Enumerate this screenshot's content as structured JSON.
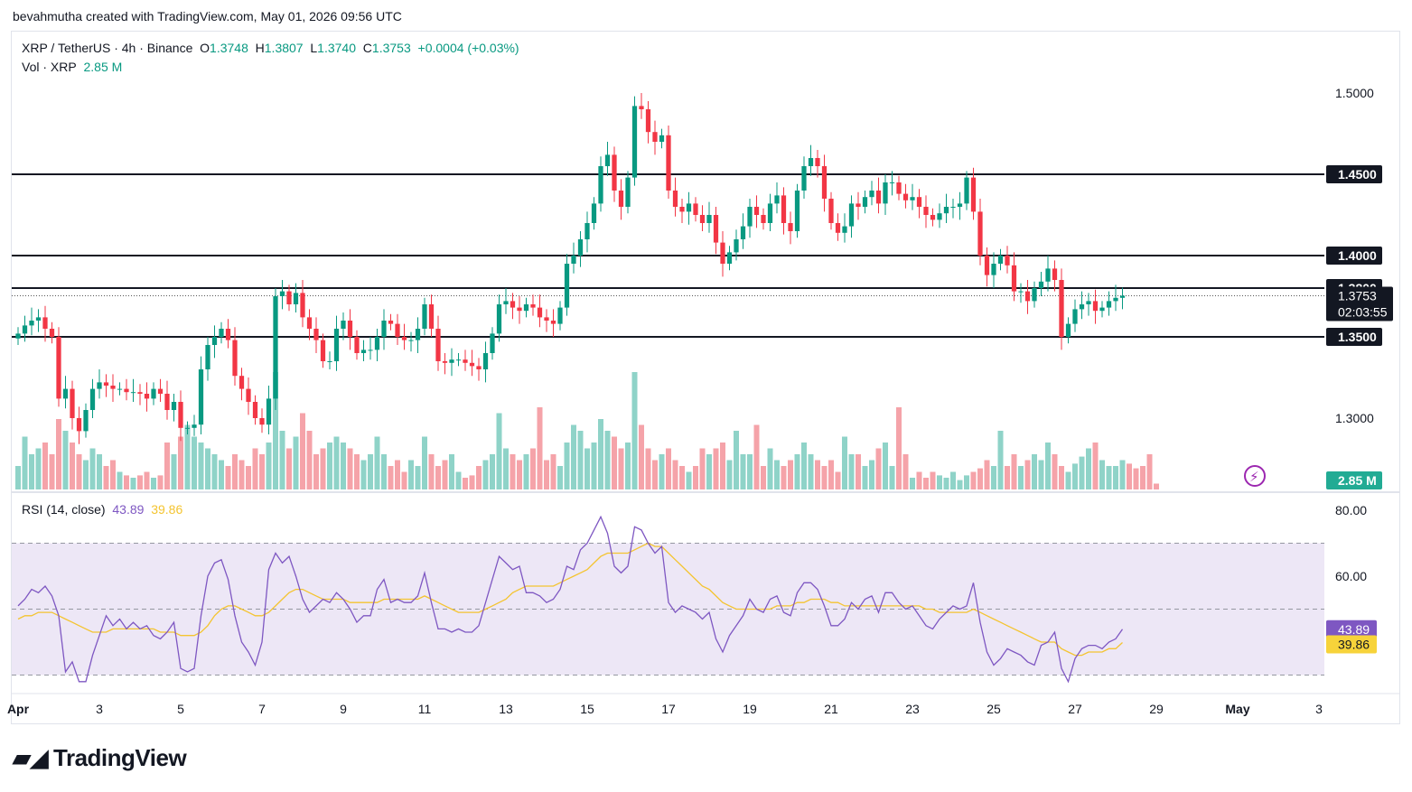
{
  "attribution": "bevahmutha created with TradingView.com, May 01, 2026 09:56 UTC",
  "header": {
    "symbol": "XRP / TetherUS · 4h · Binance",
    "o_label": "O",
    "o_value": "1.3748",
    "h_label": "H",
    "h_value": "1.3807",
    "l_label": "L",
    "l_value": "1.3740",
    "c_label": "C",
    "c_value": "1.3753",
    "change": "+0.0004 (+0.03%)"
  },
  "volume_header": {
    "label": "Vol · XRP",
    "value": "2.85 M"
  },
  "rsi_header": {
    "label": "RSI (14, close)",
    "rsi": "43.89",
    "ma": "39.86"
  },
  "logo": "TradingView",
  "colors": {
    "up": "#089981",
    "down": "#f23645",
    "rsi": "#7e57c2",
    "rsi_ma": "#f4c430",
    "band": "#ede7f6"
  },
  "chart_data": {
    "type": "candlestick",
    "price_axis": {
      "ticks": [
        "1.5000",
        "1.3000"
      ],
      "range": [
        1.27,
        1.52
      ],
      "level_labels": [
        "1.4500",
        "1.4000",
        "1.3800",
        "1.3500"
      ],
      "levels": [
        1.45,
        1.4,
        1.38,
        1.35
      ],
      "current_price": "1.3753",
      "countdown": "02:03:55",
      "volume_label": "2.85 M"
    },
    "x_axis": {
      "ticks": [
        "Apr",
        "3",
        "5",
        "7",
        "9",
        "11",
        "13",
        "15",
        "17",
        "19",
        "21",
        "23",
        "25",
        "27",
        "29",
        "May",
        "3"
      ],
      "tick_days": [
        1,
        3,
        5,
        7,
        9,
        11,
        13,
        15,
        17,
        19,
        21,
        23,
        25,
        27,
        29,
        31,
        33
      ]
    },
    "rsi_axis": {
      "ticks": [
        "80.00",
        "60.00"
      ],
      "band": [
        30,
        70
      ],
      "midline": 50,
      "range": [
        25,
        80
      ],
      "rsi_value": "43.89",
      "ma_value": "39.86"
    },
    "closes": [
      1.352,
      1.357,
      1.36,
      1.362,
      1.355,
      1.35,
      1.312,
      1.318,
      1.3,
      1.292,
      1.305,
      1.318,
      1.322,
      1.32,
      1.318,
      1.318,
      1.316,
      1.316,
      1.315,
      1.312,
      1.318,
      1.315,
      1.305,
      1.31,
      1.294,
      1.294,
      1.296,
      1.33,
      1.345,
      1.35,
      1.355,
      1.348,
      1.326,
      1.318,
      1.31,
      1.3,
      1.296,
      1.312,
      1.375,
      1.378,
      1.37,
      1.377,
      1.362,
      1.355,
      1.348,
      1.335,
      1.335,
      1.355,
      1.36,
      1.35,
      1.34,
      1.342,
      1.342,
      1.35,
      1.36,
      1.358,
      1.35,
      1.348,
      1.348,
      1.355,
      1.37,
      1.355,
      1.335,
      1.334,
      1.336,
      1.336,
      1.334,
      1.332,
      1.33,
      1.34,
      1.352,
      1.37,
      1.372,
      1.368,
      1.366,
      1.37,
      1.368,
      1.362,
      1.36,
      1.358,
      1.368,
      1.395,
      1.4,
      1.41,
      1.42,
      1.432,
      1.455,
      1.462,
      1.44,
      1.43,
      1.448,
      1.492,
      1.49,
      1.476,
      1.47,
      1.474,
      1.44,
      1.43,
      1.427,
      1.432,
      1.425,
      1.42,
      1.425,
      1.408,
      1.395,
      1.402,
      1.41,
      1.418,
      1.43,
      1.425,
      1.42,
      1.432,
      1.437,
      1.42,
      1.415,
      1.44,
      1.455,
      1.46,
      1.455,
      1.435,
      1.42,
      1.414,
      1.418,
      1.432,
      1.43,
      1.436,
      1.44,
      1.432,
      1.445,
      1.445,
      1.438,
      1.434,
      1.436,
      1.43,
      1.425,
      1.422,
      1.426,
      1.43,
      1.43,
      1.432,
      1.448,
      1.427,
      1.4,
      1.388,
      1.395,
      1.4,
      1.394,
      1.378,
      1.378,
      1.372,
      1.38,
      1.384,
      1.392,
      1.385,
      1.35,
      1.358,
      1.367,
      1.37,
      1.372,
      1.366,
      1.368,
      1.372,
      1.374,
      1.3753
    ],
    "volume_relative": [
      0.2,
      0.45,
      0.3,
      0.35,
      0.4,
      0.3,
      0.6,
      0.5,
      0.4,
      0.3,
      0.25,
      0.35,
      0.3,
      0.2,
      0.25,
      0.15,
      0.12,
      0.1,
      0.12,
      0.15,
      0.1,
      0.12,
      0.4,
      0.3,
      0.45,
      0.55,
      0.45,
      0.4,
      0.35,
      0.3,
      0.25,
      0.2,
      0.3,
      0.25,
      0.2,
      0.35,
      0.3,
      0.4,
      1.0,
      0.5,
      0.35,
      0.45,
      0.65,
      0.5,
      0.3,
      0.35,
      0.4,
      0.45,
      0.4,
      0.35,
      0.3,
      0.25,
      0.3,
      0.45,
      0.3,
      0.2,
      0.25,
      0.15,
      0.25,
      0.2,
      0.45,
      0.3,
      0.2,
      0.25,
      0.3,
      0.15,
      0.1,
      0.12,
      0.2,
      0.25,
      0.3,
      0.65,
      0.35,
      0.3,
      0.25,
      0.3,
      0.35,
      0.7,
      0.25,
      0.3,
      0.2,
      0.4,
      0.55,
      0.5,
      0.35,
      0.4,
      0.6,
      0.5,
      0.45,
      0.35,
      0.4,
      1.0,
      0.55,
      0.35,
      0.25,
      0.3,
      0.35,
      0.25,
      0.2,
      0.15,
      0.2,
      0.35,
      0.3,
      0.35,
      0.4,
      0.25,
      0.5,
      0.3,
      0.3,
      0.55,
      0.2,
      0.35,
      0.25,
      0.2,
      0.25,
      0.3,
      0.4,
      0.3,
      0.25,
      0.2,
      0.25,
      0.15,
      0.45,
      0.3,
      0.3,
      0.2,
      0.25,
      0.35,
      0.4,
      0.2,
      0.7,
      0.3,
      0.1,
      0.15,
      0.1,
      0.15,
      0.12,
      0.1,
      0.15,
      0.08,
      0.12,
      0.15,
      0.18,
      0.25,
      0.2,
      0.5,
      0.2,
      0.3,
      0.2,
      0.25,
      0.3,
      0.25,
      0.4,
      0.3,
      0.2,
      0.15,
      0.22,
      0.28,
      0.35,
      0.4,
      0.25,
      0.2,
      0.2,
      0.25,
      0.22,
      0.18,
      0.2,
      0.3,
      0.05
    ],
    "rsi": [
      51,
      53,
      56,
      55,
      57,
      54,
      48,
      31,
      34,
      28,
      28,
      36,
      42,
      48,
      45,
      47,
      44,
      46,
      44,
      45,
      42,
      41,
      43,
      46,
      32,
      31,
      32,
      48,
      60,
      64,
      65,
      59,
      48,
      40,
      37,
      33,
      40,
      62,
      67,
      64,
      66,
      60,
      53,
      49,
      51,
      53,
      52,
      55,
      53,
      50,
      46,
      48,
      48,
      56,
      59,
      52,
      53,
      52,
      52,
      54,
      61,
      52,
      44,
      44,
      43,
      44,
      43,
      43,
      45,
      52,
      59,
      66,
      64,
      62,
      63,
      55,
      55,
      54,
      52,
      53,
      56,
      63,
      62,
      68,
      70,
      74,
      78,
      73,
      63,
      61,
      63,
      75,
      74,
      70,
      67,
      69,
      52,
      49,
      51,
      50,
      49,
      47,
      49,
      41,
      37,
      42,
      45,
      48,
      53,
      50,
      49,
      53,
      54,
      49,
      48,
      55,
      58,
      58,
      56,
      51,
      45,
      45,
      47,
      52,
      50,
      53,
      54,
      49,
      55,
      55,
      52,
      50,
      51,
      48,
      45,
      44,
      47,
      49,
      51,
      50,
      51,
      58,
      46,
      37,
      33,
      35,
      38,
      37,
      36,
      34,
      33,
      39,
      40,
      43,
      32,
      28,
      35,
      38,
      39,
      39,
      38,
      40,
      41,
      43.89
    ],
    "rsi_ma": [
      47,
      48,
      48,
      49,
      49,
      49,
      48,
      47,
      46,
      45,
      44,
      43,
      43,
      43,
      44,
      44,
      44,
      44,
      44,
      44,
      44,
      43,
      43,
      43,
      42,
      42,
      42,
      43,
      45,
      48,
      50,
      51,
      51,
      50,
      49,
      48,
      48,
      49,
      51,
      53,
      55,
      56,
      56,
      55,
      54,
      53,
      53,
      53,
      53,
      52,
      52,
      52,
      52,
      52,
      53,
      53,
      53,
      53,
      53,
      53,
      54,
      53,
      52,
      51,
      50,
      49,
      49,
      49,
      49,
      50,
      51,
      52,
      53,
      55,
      56,
      57,
      57,
      57,
      57,
      57,
      58,
      59,
      60,
      61,
      62,
      64,
      66,
      67,
      67,
      67,
      67,
      68,
      69,
      70,
      69,
      69,
      67,
      65,
      63,
      61,
      59,
      57,
      56,
      54,
      52,
      51,
      50,
      50,
      50,
      50,
      50,
      50,
      51,
      51,
      51,
      52,
      52,
      53,
      53,
      53,
      52,
      52,
      51,
      51,
      51,
      51,
      51,
      51,
      51,
      51,
      51,
      51,
      51,
      51,
      50,
      50,
      49,
      49,
      49,
      49,
      49,
      50,
      49,
      48,
      47,
      46,
      45,
      44,
      43,
      42,
      41,
      40,
      40,
      40,
      38,
      37,
      36,
      36,
      37,
      37,
      37,
      38,
      38,
      39.86
    ]
  }
}
